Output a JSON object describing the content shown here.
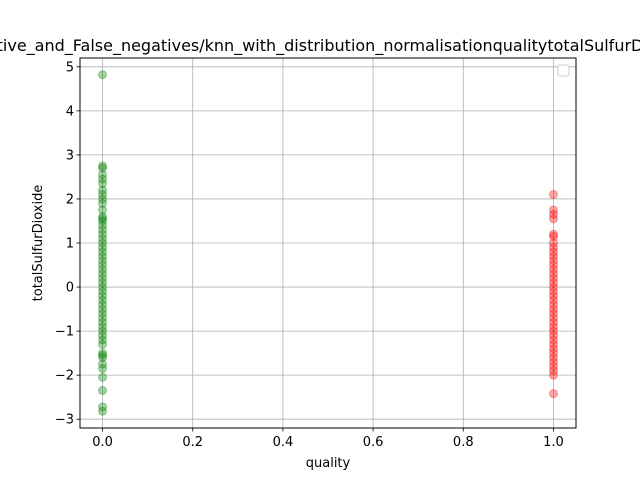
{
  "chart_data": {
    "type": "scatter",
    "title": "Positive_and_False_negatives/knn_with_distribution_normalisationqualitytotalSulfurDioxide",
    "xlabel": "quality",
    "ylabel": "totalSulfurDioxide",
    "xlim": [
      -0.05,
      1.05
    ],
    "ylim": [
      -3.2,
      5.2
    ],
    "xticks": [
      0.0,
      0.2,
      0.4,
      0.6,
      0.8,
      1.0
    ],
    "xtick_labels": [
      "0.0",
      "0.2",
      "0.4",
      "0.6",
      "0.8",
      "1.0"
    ],
    "yticks": [
      -3,
      -2,
      -1,
      0,
      1,
      2,
      3,
      4,
      5
    ],
    "ytick_labels": [
      "−3",
      "−2",
      "−1",
      "0",
      "1",
      "2",
      "3",
      "4",
      "5"
    ],
    "grid": true,
    "legend": "top-right (empty)",
    "series": [
      {
        "color": "#008000",
        "x": 0.0,
        "y": [
          4.82,
          2.75,
          2.7,
          2.55,
          2.45,
          2.35,
          2.2,
          2.1,
          2.0,
          1.9,
          1.75,
          1.6,
          1.55,
          1.5,
          1.4,
          1.3,
          1.2,
          1.1,
          1.0,
          0.9,
          0.8,
          0.7,
          0.6,
          0.5,
          0.4,
          0.3,
          0.2,
          0.1,
          0.0,
          -0.1,
          -0.2,
          -0.3,
          -0.4,
          -0.5,
          -0.6,
          -0.7,
          -0.8,
          -0.9,
          -1.0,
          -1.1,
          -1.2,
          -1.3,
          -1.5,
          -1.55,
          -1.6,
          -1.75,
          -1.85,
          -2.05,
          -2.35,
          -2.72,
          -2.82
        ]
      },
      {
        "color": "#ff0000",
        "x": 1.0,
        "y": [
          2.1,
          1.75,
          1.65,
          1.55,
          1.2,
          1.15,
          1.0,
          0.9,
          0.8,
          0.7,
          0.6,
          0.5,
          0.4,
          0.3,
          0.2,
          0.1,
          0.0,
          -0.1,
          -0.2,
          -0.3,
          -0.4,
          -0.5,
          -0.6,
          -0.7,
          -0.8,
          -0.9,
          -1.0,
          -1.1,
          -1.2,
          -1.3,
          -1.4,
          -1.5,
          -1.6,
          -1.7,
          -1.8,
          -1.9,
          -2.0,
          -2.42
        ]
      }
    ]
  }
}
